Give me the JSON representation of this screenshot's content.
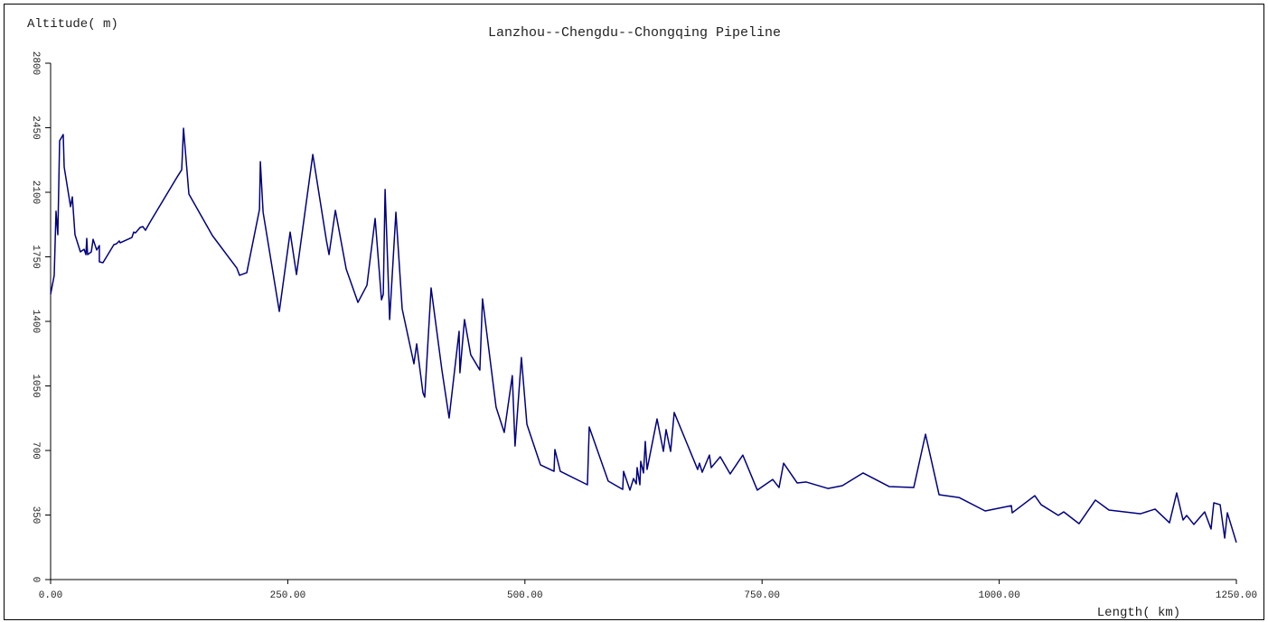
{
  "chart_data": {
    "type": "line",
    "title": "Lanzhou--Chengdu--Chongqing Pipeline",
    "y_label": "Altitude( m)",
    "x_label": "Length( km)",
    "xlim": [
      0,
      1250
    ],
    "ylim": [
      0,
      2800
    ],
    "xticks": [
      {
        "value": 0,
        "label": "0.00"
      },
      {
        "value": 250,
        "label": "250.00"
      },
      {
        "value": 500,
        "label": "500.00"
      },
      {
        "value": 750,
        "label": "750.00"
      },
      {
        "value": 1000,
        "label": "1000.00"
      },
      {
        "value": 1250,
        "label": "1250.00"
      }
    ],
    "yticks": [
      0,
      350,
      700,
      1050,
      1400,
      1750,
      2100,
      2450,
      2800
    ],
    "series": [
      {
        "color": "#000080",
        "x": [
          0,
          3.8,
          5.7,
          7.6,
          9.5,
          13.3,
          14.3,
          21,
          22.9,
          25.7,
          31.4,
          35.3,
          37.2,
          38.1,
          39,
          42.9,
          44.8,
          48.6,
          51.4,
          51.4,
          55.2,
          66.7,
          69.5,
          72.4,
          73.4,
          85.7,
          87.6,
          89.5,
          94.3,
          97.2,
          100,
          104.8,
          133.4,
          138.2,
          140.1,
          145.8,
          170.6,
          196.3,
          199.2,
          206.8,
          220.2,
          221.1,
          224,
          241.1,
          252.5,
          259.2,
          276.4,
          290.7,
          293.5,
          300.2,
          311.6,
          324,
          333.5,
          342.1,
          348.8,
          350.7,
          352.6,
          357.4,
          364,
          370.6,
          383,
          385.9,
          392.5,
          394.4,
          401.1,
          412.5,
          420.1,
          430.6,
          431.5,
          436.3,
          442.9,
          452.5,
          455.3,
          469.6,
          478.2,
          486.7,
          489.6,
          496.3,
          502.1,
          516.4,
          530.7,
          531.6,
          537.3,
          565.9,
          567.8,
          587.8,
          603.1,
          604,
          610.7,
          614.5,
          617.4,
          618.3,
          621.2,
          622.1,
          625,
          626.9,
          628.8,
          639.3,
          646,
          648.8,
          653.6,
          657.4,
          682.1,
          684,
          686.9,
          694.5,
          696.4,
          705.9,
          716.4,
          729.7,
          745,
          761.2,
          767.9,
          772.7,
          787,
          796.5,
          819.4,
          834.6,
          856.5,
          884.2,
          909.9,
          922.3,
          936.6,
          957.6,
          985.2,
          1012.8,
          1013.7,
          1037.5,
          1044.2,
          1062.3,
          1068,
          1084.2,
          1101.4,
          1115.7,
          1149,
          1164.3,
          1179.5,
          1187.1,
          1193.8,
          1197.6,
          1205.2,
          1216.6,
          1223.3,
          1226.2,
          1232.9,
          1237.7,
          1240.5,
          1250
        ],
        "values": [
          1547,
          1650,
          1997,
          1870,
          2379,
          2413,
          2237,
          2022,
          2075,
          1870,
          1777,
          1791,
          1762,
          1850,
          1762,
          1777,
          1845,
          1787,
          1811,
          1723,
          1718,
          1816,
          1821,
          1836,
          1826,
          1855,
          1884,
          1880,
          1909,
          1914,
          1894,
          1938,
          2183,
          2222,
          2447,
          2090,
          1865,
          1689,
          1650,
          1664,
          2007,
          2266,
          1992,
          1454,
          1884,
          1654,
          2305,
          1840,
          1762,
          2002,
          1684,
          1503,
          1596,
          1958,
          1517,
          1547,
          2115,
          1410,
          1992,
          1468,
          1170,
          1278,
          1013,
          989,
          1581,
          1136,
          876,
          1346,
          1121,
          1410,
          1219,
          1136,
          1522,
          935,
          798,
          1106,
          724,
          1204,
          842,
          622,
          587,
          705,
          587,
          514,
          827,
          534,
          489,
          587,
          485,
          548,
          519,
          607,
          514,
          641,
          578,
          749,
          597,
          871,
          695,
          813,
          695,
          906,
          597,
          631,
          582,
          675,
          607,
          666,
          573,
          675,
          485,
          543,
          499,
          631,
          524,
          529,
          494,
          509,
          578,
          504,
          499,
          788,
          460,
          445,
          372,
          401,
          362,
          455,
          406,
          348,
          367,
          303,
          431,
          377,
          357,
          382,
          308,
          470,
          323,
          348,
          299,
          367,
          274,
          416,
          406,
          225,
          362,
          201
        ]
      }
    ]
  }
}
